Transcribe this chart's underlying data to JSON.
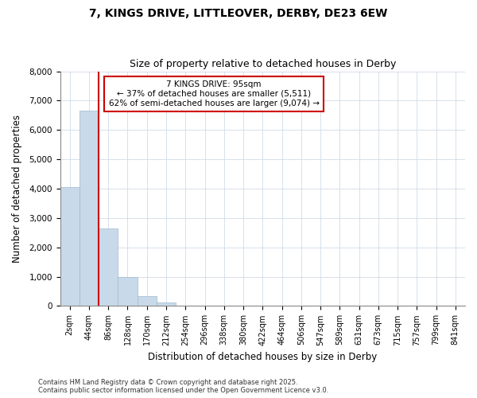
{
  "title": "7, KINGS DRIVE, LITTLEOVER, DERBY, DE23 6EW",
  "subtitle": "Size of property relative to detached houses in Derby",
  "xlabel": "Distribution of detached houses by size in Derby",
  "ylabel": "Number of detached properties",
  "bar_labels": [
    "2sqm",
    "44sqm",
    "86sqm",
    "128sqm",
    "170sqm",
    "212sqm",
    "254sqm",
    "296sqm",
    "338sqm",
    "380sqm",
    "422sqm",
    "464sqm",
    "506sqm",
    "547sqm",
    "589sqm",
    "631sqm",
    "673sqm",
    "715sqm",
    "757sqm",
    "799sqm",
    "841sqm"
  ],
  "bar_values": [
    4050,
    6650,
    2650,
    1000,
    330,
    120,
    0,
    0,
    0,
    0,
    0,
    0,
    0,
    0,
    0,
    0,
    0,
    0,
    0,
    0,
    0
  ],
  "bar_color": "#c8daea",
  "bar_edge_color": "#a0b8cc",
  "ylim": [
    0,
    8000
  ],
  "yticks": [
    0,
    1000,
    2000,
    3000,
    4000,
    5000,
    6000,
    7000,
    8000
  ],
  "property_label": "7 KINGS DRIVE: 95sqm",
  "annotation_line1": "← 37% of detached houses are smaller (5,511)",
  "annotation_line2": "62% of semi-detached houses are larger (9,074) →",
  "annotation_box_color": "#ffffff",
  "annotation_box_edge": "#cc0000",
  "vline_color": "#cc0000",
  "vline_x_index": 1.5,
  "grid_color": "#d0dce8",
  "background_color": "#ffffff",
  "footnote1": "Contains HM Land Registry data © Crown copyright and database right 2025.",
  "footnote2": "Contains public sector information licensed under the Open Government Licence v3.0."
}
